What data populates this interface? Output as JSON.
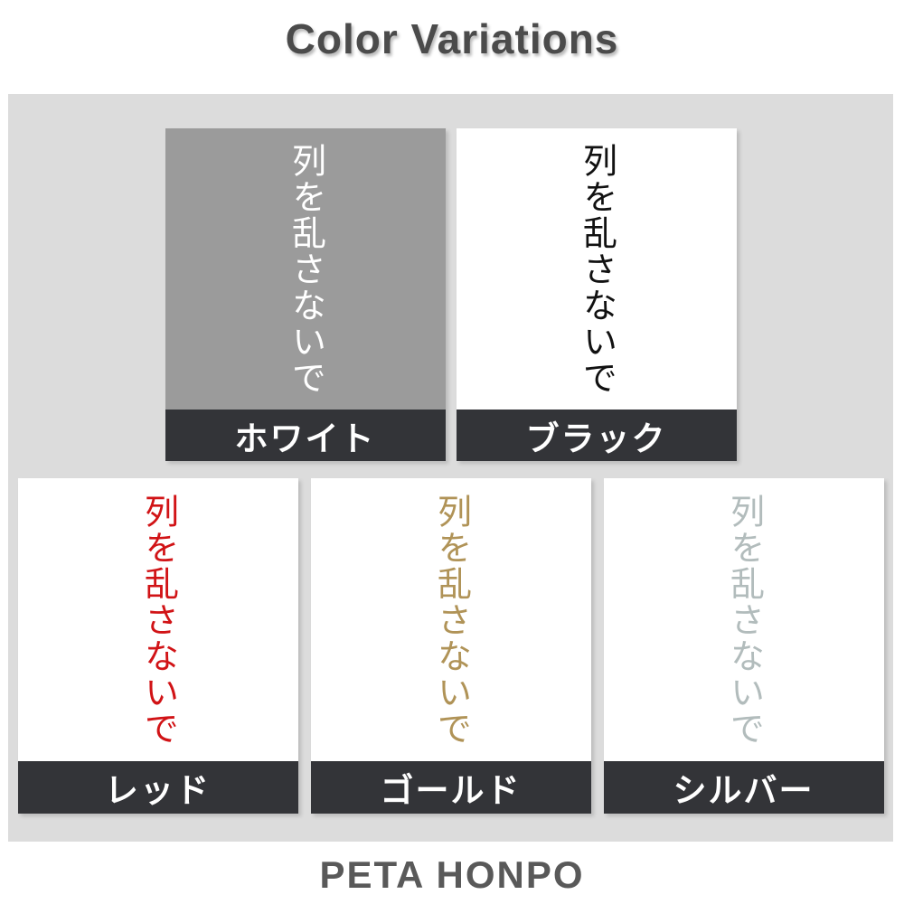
{
  "title": "Color Variations",
  "footer": "PETA HONPO",
  "colors": {
    "page_bg": "#ffffff",
    "panel_bg": "#dcdcdc",
    "label_bar_bg": "#333438",
    "label_text": "#ffffff",
    "title_text": "#4b4b4b",
    "footer_text": "#595959"
  },
  "variations": [
    {
      "name": "white",
      "label": "ホワイト",
      "sample_text": "列を乱さないで",
      "swatch_bg": "#9b9b9b",
      "text_color": "#ffffff"
    },
    {
      "name": "black",
      "label": "ブラック",
      "sample_text": "列を乱さないで",
      "swatch_bg": "#ffffff",
      "text_color": "#111111"
    },
    {
      "name": "red",
      "label": "レッド",
      "sample_text": "列を乱さないで",
      "swatch_bg": "#ffffff",
      "text_color": "#d11316"
    },
    {
      "name": "gold",
      "label": "ゴールド",
      "sample_text": "列を乱さないで",
      "swatch_bg": "#ffffff",
      "text_color": "#b09357"
    },
    {
      "name": "silver",
      "label": "シルバー",
      "sample_text": "列を乱さないで",
      "swatch_bg": "#ffffff",
      "text_color": "#b2bcbc"
    }
  ]
}
